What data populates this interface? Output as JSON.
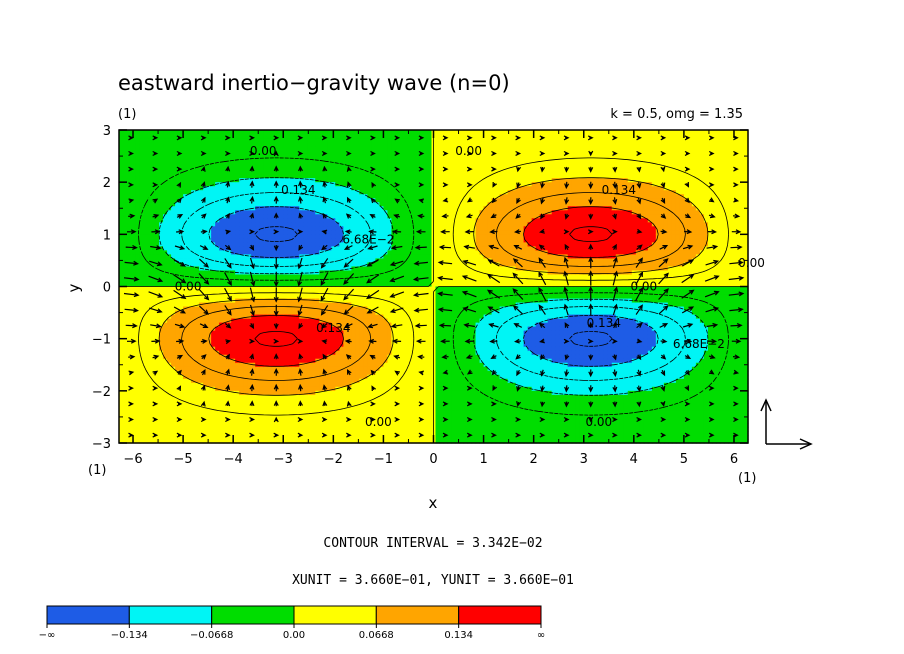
{
  "chart_data": {
    "type": "heatmap",
    "title": "eastward inertio−gravity wave (n=0)",
    "panel_label": "(1)",
    "params_label": "k = 0.5, omg = 1.35",
    "xlabel": "x",
    "ylabel": "y",
    "xlim": [
      -6.28,
      6.28
    ],
    "ylim": [
      -3,
      3
    ],
    "x_ticks": [
      -6,
      -5,
      -4,
      -3,
      -2,
      -1,
      0,
      1,
      2,
      3,
      4,
      5,
      6
    ],
    "x_tick_labels": [
      "−6",
      "−5",
      "−4",
      "−3",
      "−2",
      "−1",
      "0",
      "1",
      "2",
      "3",
      "4",
      "5",
      "6"
    ],
    "y_ticks": [
      -3,
      -2,
      -1,
      0,
      1,
      2,
      3
    ],
    "y_tick_labels": [
      "−3",
      "−2",
      "−1",
      "0",
      "1",
      "2",
      "3"
    ],
    "x_unit_label": "(1)",
    "y_unit_label": "(1)",
    "field": {
      "expression": "A * sin(k*x) * y * exp(-y^2/2)",
      "k": 0.5,
      "max_abs": 0.171
    },
    "levels": [
      -0.134,
      -0.0668,
      0.0,
      0.0668,
      0.134
    ],
    "colors": [
      "#1E5CE6",
      "#00F5F5",
      "#00DD00",
      "#FFFF00",
      "#FFA500",
      "#FF0000"
    ],
    "colorbar_labels": [
      "−∞",
      "−0.134",
      "−0.0668",
      "0.00",
      "0.0668",
      "0.134",
      "∞"
    ],
    "contour_labels": [
      {
        "text": "0.00",
        "x": -3.4,
        "y": 2.6
      },
      {
        "text": "0.134",
        "x": -2.7,
        "y": 1.85
      },
      {
        "text": "6.68E−2",
        "x": -1.3,
        "y": 0.9
      },
      {
        "text": "0.00",
        "x": 0.7,
        "y": 2.6
      },
      {
        "text": "0.134",
        "x": 3.7,
        "y": 1.85
      },
      {
        "text": "0.00",
        "x": -4.9,
        "y": 0.0
      },
      {
        "text": "0.00",
        "x": 4.2,
        "y": 0.0
      },
      {
        "text": "0.134",
        "x": -2.0,
        "y": -0.8
      },
      {
        "text": "0.134",
        "x": 3.4,
        "y": -0.7
      },
      {
        "text": "6.68E−2",
        "x": 5.3,
        "y": -1.1
      },
      {
        "text": "0.00",
        "x": -1.1,
        "y": -2.6
      },
      {
        "text": "0.00",
        "x": 3.3,
        "y": -2.6
      },
      {
        "text": "0.00",
        "x": 6.35,
        "y": 0.45
      }
    ],
    "vectors": {
      "u_expression": "-0.2 * cos(k*x) * exp(-y^2/2) * 2",
      "v_expression": "0.4 * sin(k*x) * (1 - y^2) * exp(-y^2/2)"
    },
    "contour_interval_text": "CONTOUR INTERVAL = 3.342E−02",
    "unit_text": "XUNIT = 3.660E−01, YUNIT = 3.660E−01",
    "grid": false,
    "legend": "bottom"
  }
}
